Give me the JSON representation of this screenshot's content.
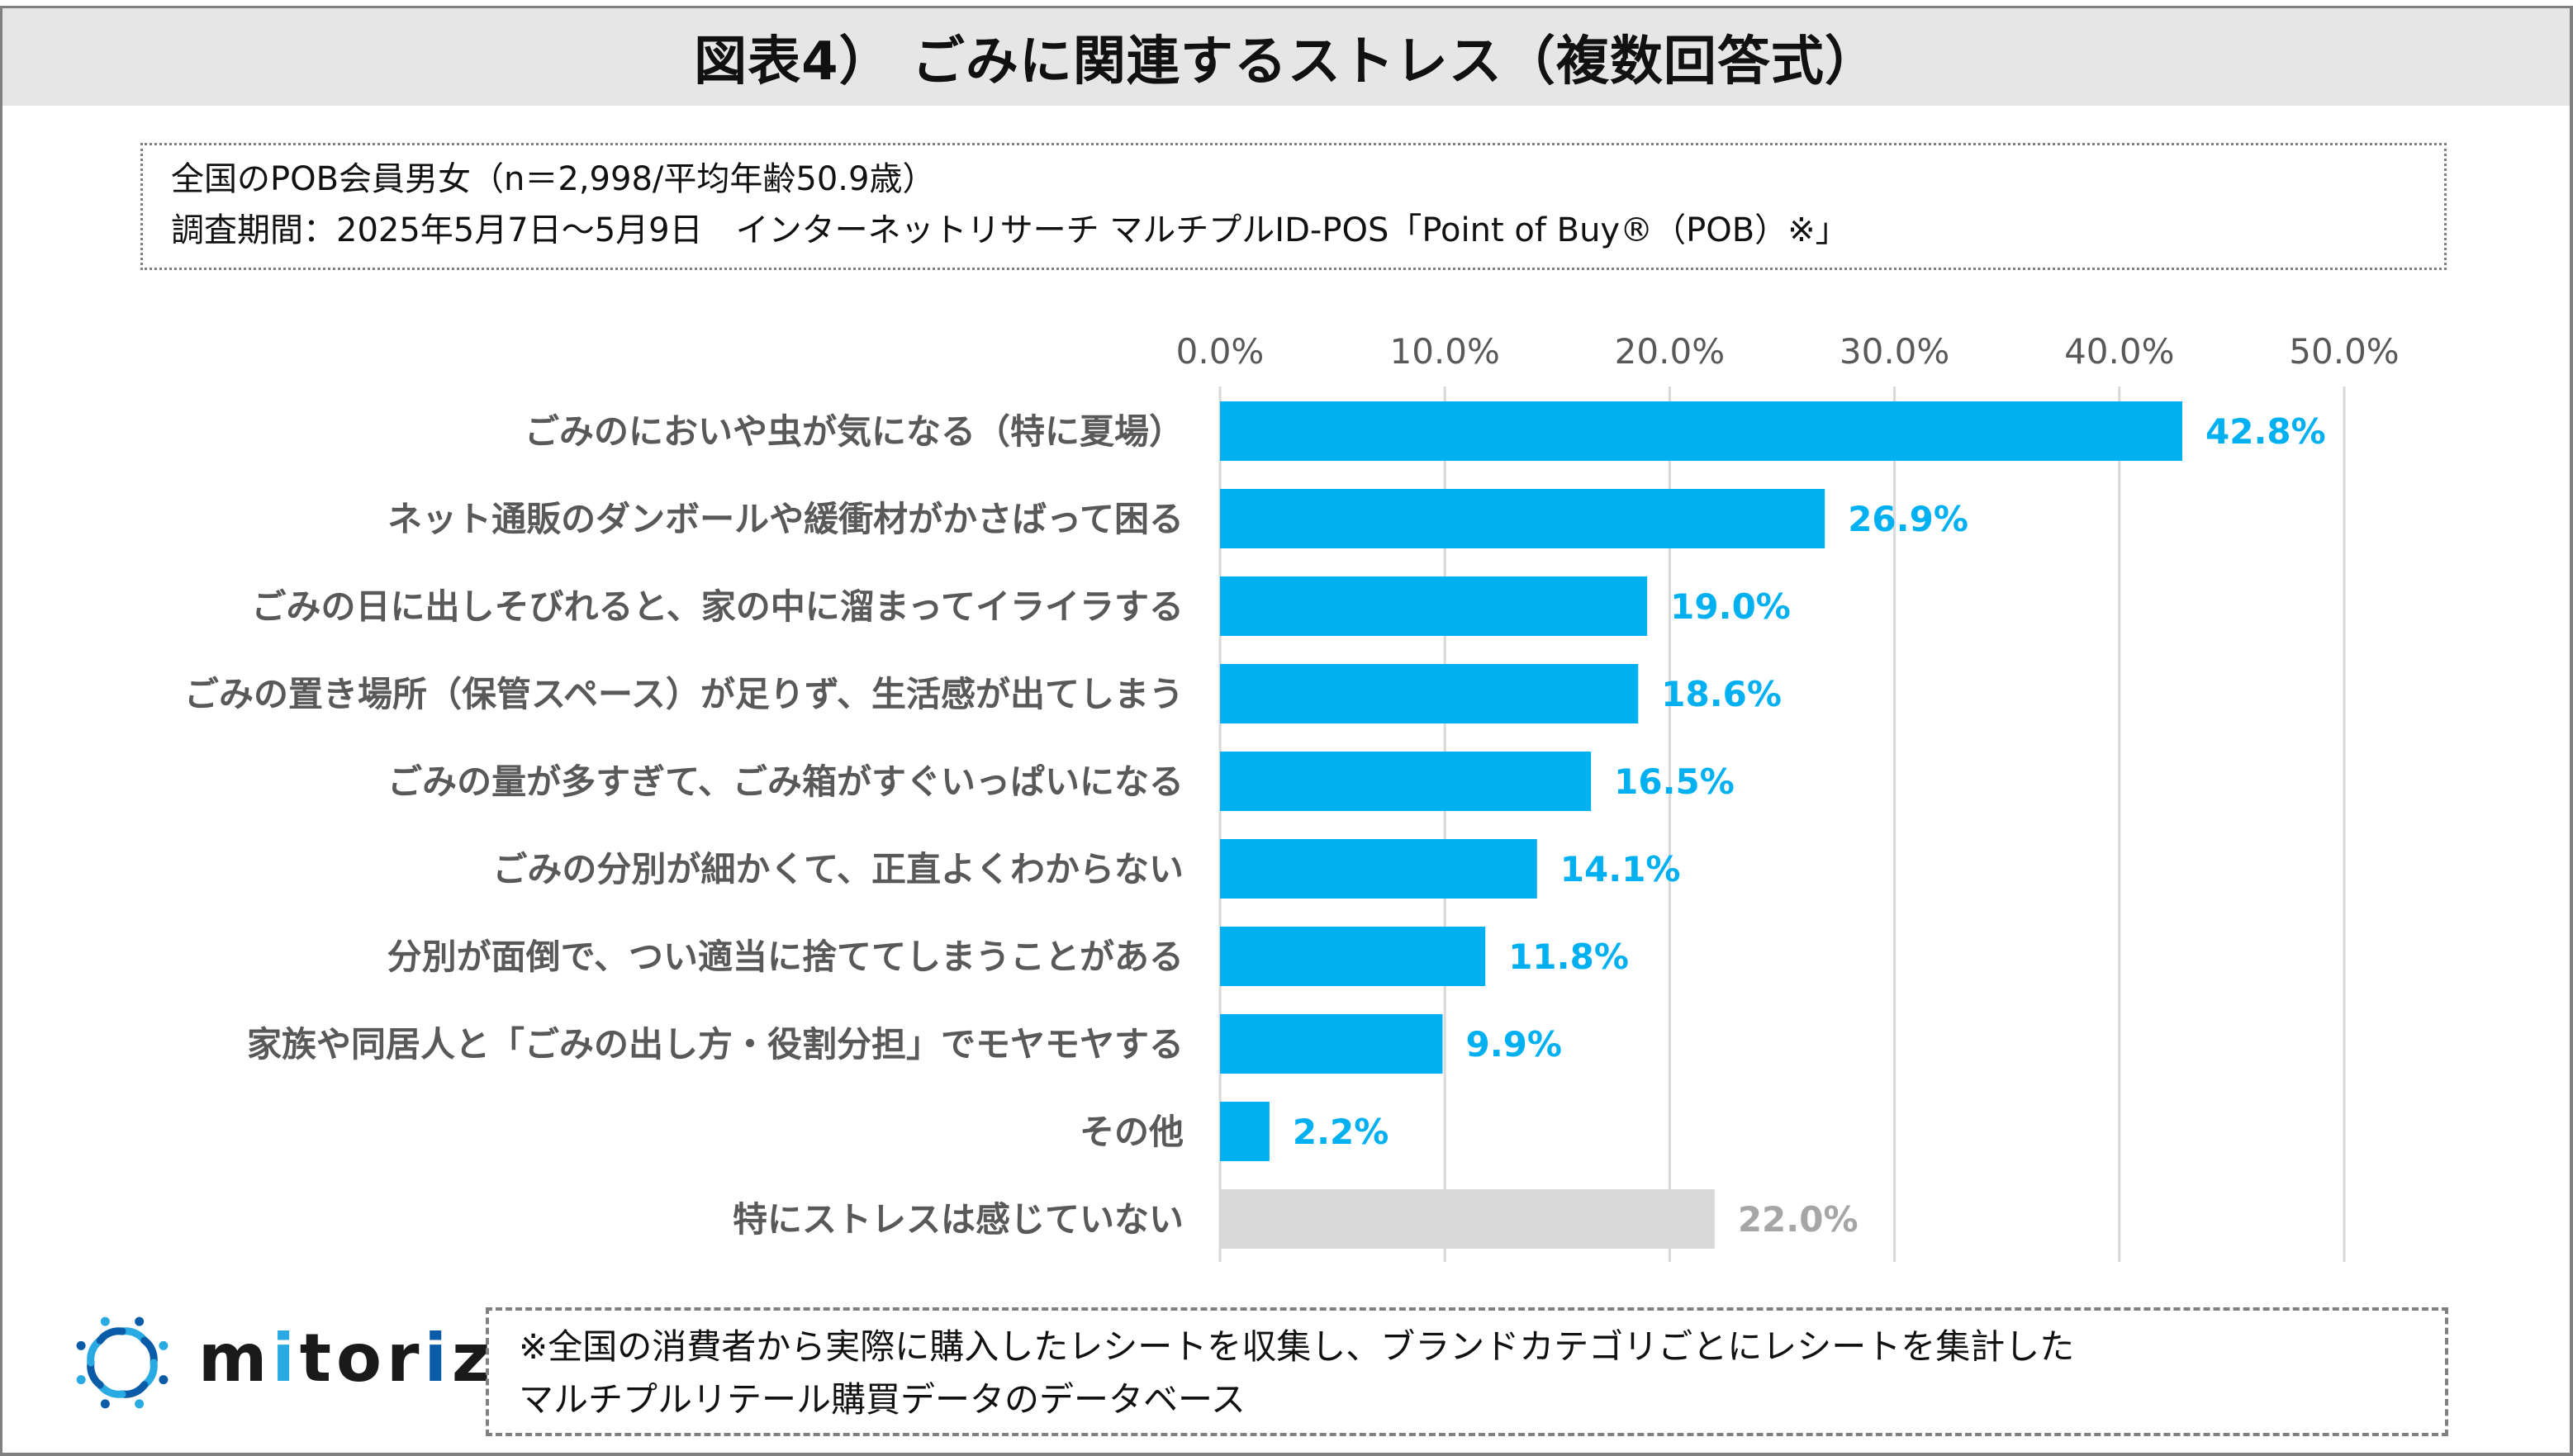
{
  "title": "図表4） ごみに関連するストレス（複数回答式）",
  "info": {
    "line1": "全国のPOB会員男女（n＝2,998/平均年齢50.9歳）",
    "line2": "調査期間：2025年5月7日～5月9日　インターネットリサーチ マルチプルID-POS「Point of Buy®（POB）※」"
  },
  "note": {
    "line1": "※全国の消費者から実際に購入したレシートを収集し、ブランドカテゴリごとにレシートを集計した",
    "line2": "マルチプルリテール購買データのデータベース"
  },
  "logo": {
    "text": "mitoriz",
    "colors": {
      "light": "#29aae2",
      "dark": "#0a5ca8",
      "text": "#1a1a1a"
    }
  },
  "colors": {
    "bar_primary": "#00b0f0",
    "bar_muted": "#d9d9d9",
    "label_primary": "#00b0f0",
    "label_muted": "#a6a6a6",
    "axis_text": "#595959",
    "gridline": "#d9d9d9"
  },
  "chart_data": {
    "type": "bar",
    "orientation": "horizontal",
    "title": "図表4） ごみに関連するストレス（複数回答式）",
    "xlabel": "",
    "ylabel": "",
    "xlim": [
      0,
      50
    ],
    "xticks": [
      0,
      10,
      20,
      30,
      40,
      50
    ],
    "xtick_labels": [
      "0.0%",
      "10.0%",
      "20.0%",
      "30.0%",
      "40.0%",
      "50.0%"
    ],
    "x_axis_position": "top",
    "grid": true,
    "legend": "none",
    "categories": [
      "ごみのにおいや虫が気になる（特に夏場）",
      "ネット通販のダンボールや緩衝材がかさばって困る",
      "ごみの日に出しそびれると、家の中に溜まってイライラする",
      "ごみの置き場所（保管スペース）が足りず、生活感が出てしまう",
      "ごみの量が多すぎて、ごみ箱がすぐいっぱいになる",
      "ごみの分別が細かくて、正直よくわからない",
      "分別が面倒で、つい適当に捨ててしまうことがある",
      "家族や同居人と「ごみの出し方・役割分担」でモヤモヤする",
      "その他",
      "特にストレスは感じていない"
    ],
    "values": [
      42.8,
      26.9,
      19.0,
      18.6,
      16.5,
      14.1,
      11.8,
      9.9,
      2.2,
      22.0
    ],
    "value_labels": [
      "42.8%",
      "26.9%",
      "19.0%",
      "18.6%",
      "16.5%",
      "14.1%",
      "11.8%",
      "9.9%",
      "2.2%",
      "22.0%"
    ],
    "muted": [
      false,
      false,
      false,
      false,
      false,
      false,
      false,
      false,
      false,
      true
    ],
    "unit": "%"
  }
}
